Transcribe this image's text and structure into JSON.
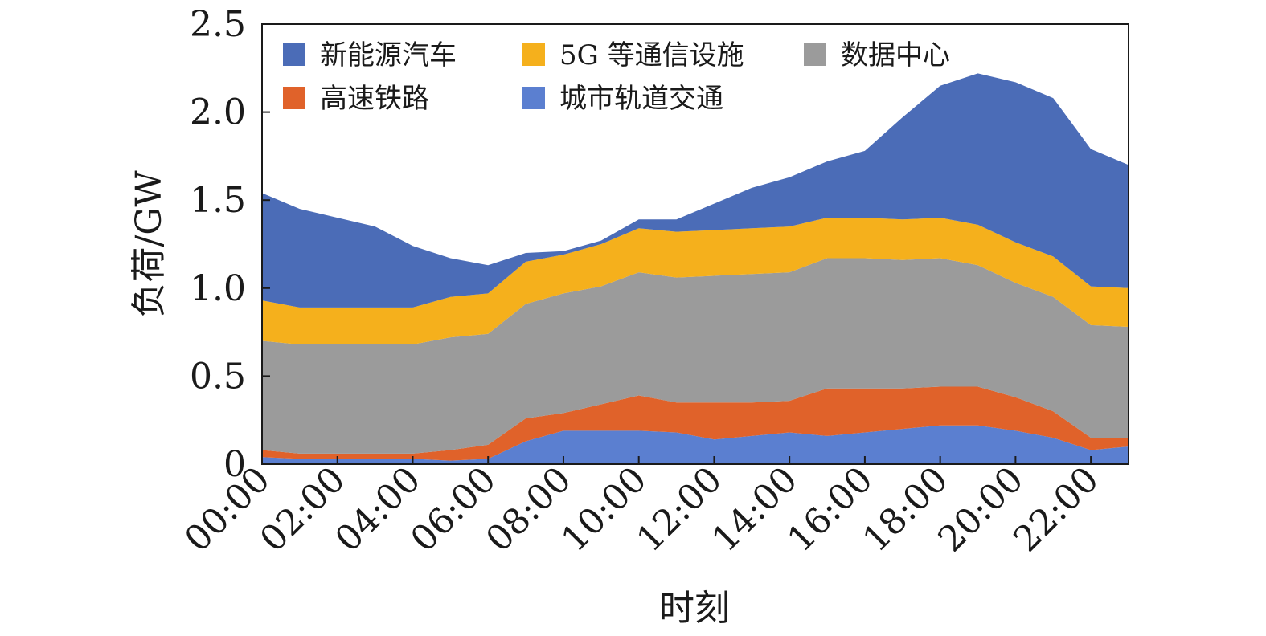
{
  "chart_data": {
    "type": "area",
    "stacked": true,
    "xlabel": "时刻",
    "ylabel": "负荷/GW",
    "ylim": [
      0,
      2.5
    ],
    "yticks": [
      "0",
      "0.5",
      "1.0",
      "1.5",
      "2.0",
      "2.5"
    ],
    "ytick_values": [
      0,
      0.5,
      1.0,
      1.5,
      2.0,
      2.5
    ],
    "x": [
      "00:00",
      "01:00",
      "02:00",
      "03:00",
      "04:00",
      "05:00",
      "06:00",
      "07:00",
      "08:00",
      "09:00",
      "10:00",
      "11:00",
      "12:00",
      "13:00",
      "14:00",
      "15:00",
      "16:00",
      "17:00",
      "18:00",
      "19:00",
      "20:00",
      "21:00",
      "22:00",
      "23:00"
    ],
    "xtick_labels": [
      "00:00",
      "02:00",
      "04:00",
      "06:00",
      "08:00",
      "10:00",
      "12:00",
      "14:00",
      "16:00",
      "18:00",
      "20:00",
      "22:00"
    ],
    "legend_position": "top",
    "grid": false,
    "series": [
      {
        "name": "城市轨道交通",
        "color": "#5b7fd0",
        "values": [
          0.04,
          0.03,
          0.03,
          0.03,
          0.03,
          0.02,
          0.03,
          0.13,
          0.19,
          0.19,
          0.19,
          0.18,
          0.14,
          0.16,
          0.18,
          0.16,
          0.18,
          0.2,
          0.22,
          0.22,
          0.19,
          0.15,
          0.08,
          0.1
        ]
      },
      {
        "name": "高速铁路",
        "color": "#e0622a",
        "values": [
          0.04,
          0.03,
          0.03,
          0.03,
          0.03,
          0.06,
          0.08,
          0.13,
          0.1,
          0.15,
          0.2,
          0.17,
          0.21,
          0.19,
          0.18,
          0.27,
          0.25,
          0.23,
          0.22,
          0.22,
          0.19,
          0.15,
          0.07,
          0.05
        ]
      },
      {
        "name": "数据中心",
        "color": "#9b9b9b",
        "values": [
          0.62,
          0.62,
          0.62,
          0.62,
          0.62,
          0.64,
          0.63,
          0.65,
          0.68,
          0.67,
          0.7,
          0.71,
          0.72,
          0.73,
          0.73,
          0.74,
          0.74,
          0.73,
          0.73,
          0.69,
          0.65,
          0.65,
          0.64,
          0.63
        ]
      },
      {
        "name": "5G 等通信设施",
        "color": "#f5b01c",
        "values": [
          0.23,
          0.21,
          0.21,
          0.21,
          0.21,
          0.23,
          0.23,
          0.24,
          0.22,
          0.24,
          0.25,
          0.26,
          0.26,
          0.26,
          0.26,
          0.23,
          0.23,
          0.23,
          0.23,
          0.23,
          0.23,
          0.23,
          0.22,
          0.22
        ]
      },
      {
        "name": "新能源汽车",
        "color": "#4b6cb7",
        "values": [
          0.61,
          0.56,
          0.51,
          0.46,
          0.35,
          0.22,
          0.16,
          0.05,
          0.02,
          0.02,
          0.05,
          0.07,
          0.15,
          0.23,
          0.28,
          0.32,
          0.38,
          0.58,
          0.75,
          0.86,
          0.91,
          0.9,
          0.78,
          0.7
        ]
      }
    ],
    "legend_order": [
      "新能源汽车",
      "5G 等通信设施",
      "数据中心",
      "高速铁路",
      "城市轨道交通"
    ]
  }
}
